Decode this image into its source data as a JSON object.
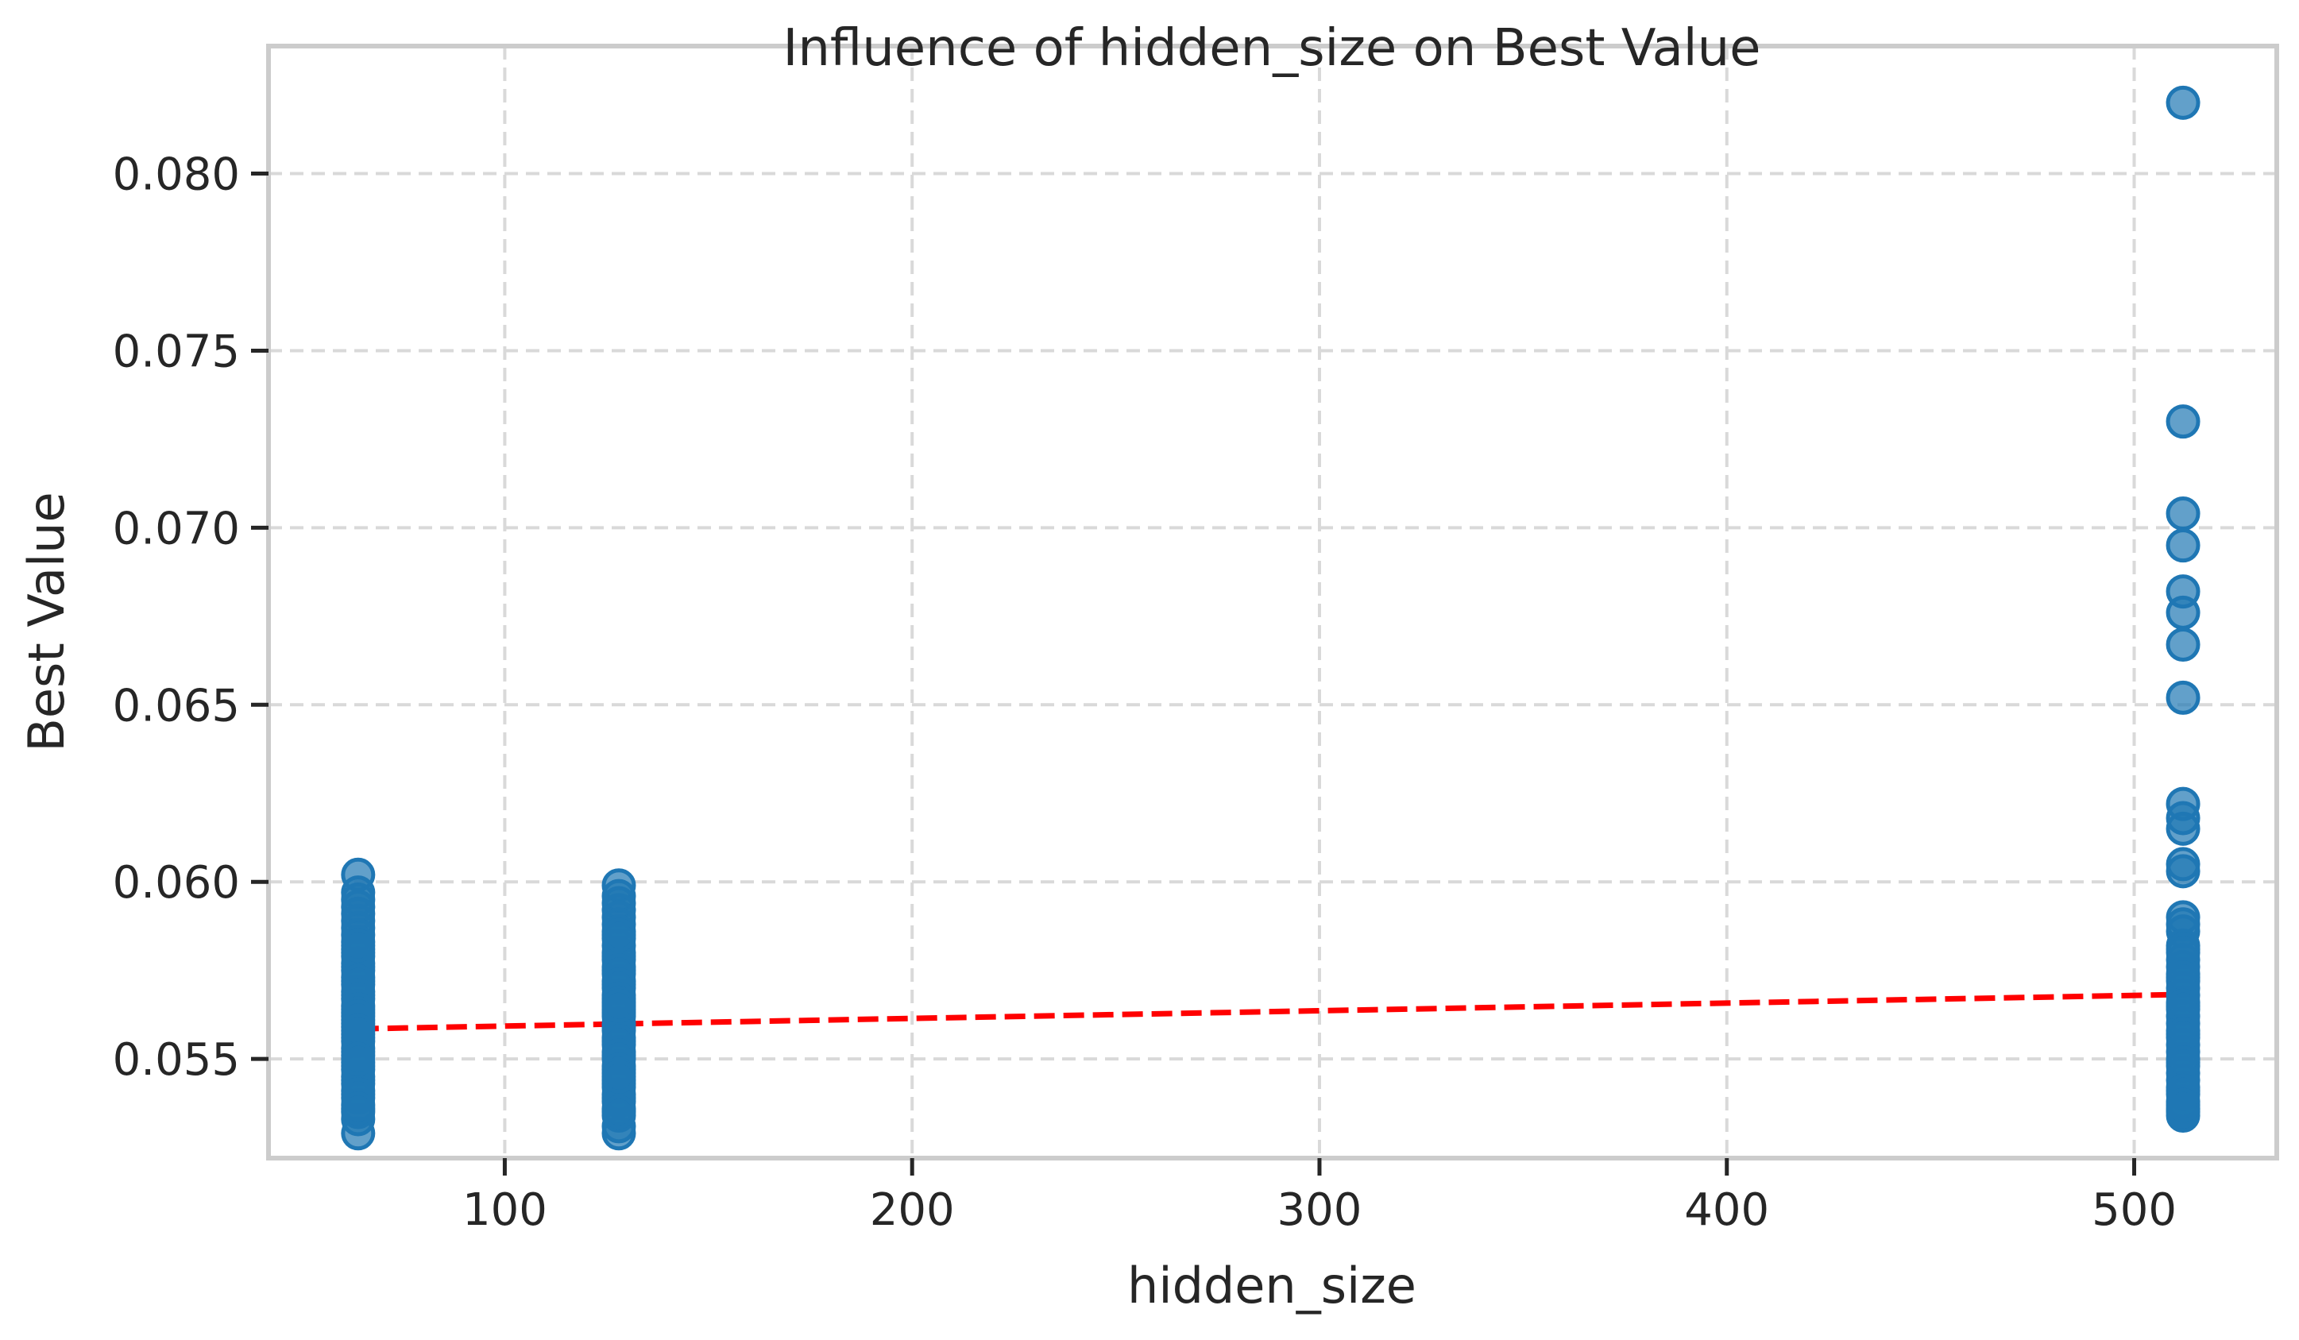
{
  "chart_data": {
    "type": "scatter",
    "title": "Influence of hidden_size on Best Value",
    "xlabel": "hidden_size",
    "ylabel": "Best Value",
    "xlim": [
      42,
      535
    ],
    "ylim": [
      0.0522,
      0.0836
    ],
    "xticks": [
      100,
      200,
      300,
      400,
      500
    ],
    "yticks": [
      0.055,
      0.06,
      0.065,
      0.07,
      0.075,
      0.08
    ],
    "xtick_labels": [
      "100",
      "200",
      "300",
      "400",
      "500"
    ],
    "ytick_labels": [
      "0.055",
      "0.060",
      "0.065",
      "0.070",
      "0.075",
      "0.080"
    ],
    "grid": true,
    "colors": {
      "points": "#1f77b4",
      "trend": "#ff0000",
      "frame": "#cccccc",
      "grid": "#d9d9d9"
    },
    "series": [
      {
        "x": [
          64,
          64,
          64,
          64,
          64,
          64,
          64,
          64,
          64,
          64,
          64,
          64,
          64,
          64,
          64,
          64,
          64,
          64,
          64,
          64,
          64,
          64,
          64,
          64,
          64,
          64,
          64,
          64,
          64,
          64,
          64,
          64,
          64,
          64,
          64,
          64,
          64,
          64,
          64,
          64,
          64,
          64,
          64,
          64,
          64,
          64,
          64,
          64,
          64,
          64,
          64
        ],
        "y": [
          0.0602,
          0.0597,
          0.0595,
          0.0593,
          0.0591,
          0.0589,
          0.0587,
          0.0585,
          0.0583,
          0.0581,
          0.0579,
          0.0577,
          0.0575,
          0.0573,
          0.0571,
          0.0569,
          0.0567,
          0.0565,
          0.0563,
          0.0561,
          0.0559,
          0.0557,
          0.0555,
          0.0553,
          0.0551,
          0.0549,
          0.0547,
          0.0545,
          0.0543,
          0.0541,
          0.0539,
          0.0537,
          0.0535,
          0.0533,
          0.0529,
          0.058,
          0.0576,
          0.0572,
          0.0568,
          0.0564,
          0.056,
          0.0556,
          0.0552,
          0.0548,
          0.0544,
          0.054,
          0.0536,
          0.0582,
          0.0562,
          0.0558,
          0.055
        ]
      },
      {
        "x": [
          128,
          128,
          128,
          128,
          128,
          128,
          128,
          128,
          128,
          128,
          128,
          128,
          128,
          128,
          128,
          128,
          128,
          128,
          128,
          128,
          128,
          128,
          128,
          128,
          128,
          128,
          128,
          128,
          128,
          128,
          128,
          128,
          128,
          128,
          128,
          128,
          128,
          128,
          128,
          128,
          128,
          128,
          128,
          128,
          128,
          128,
          128,
          128,
          128,
          128
        ],
        "y": [
          0.0599,
          0.0596,
          0.0594,
          0.0592,
          0.059,
          0.0588,
          0.0586,
          0.0584,
          0.0582,
          0.058,
          0.0578,
          0.0576,
          0.0574,
          0.0572,
          0.057,
          0.0568,
          0.0566,
          0.0564,
          0.0562,
          0.056,
          0.0558,
          0.0556,
          0.0554,
          0.0552,
          0.055,
          0.0548,
          0.0546,
          0.0544,
          0.0542,
          0.054,
          0.0538,
          0.0536,
          0.0534,
          0.0531,
          0.0529,
          0.0579,
          0.0575,
          0.0571,
          0.0567,
          0.0563,
          0.0559,
          0.0555,
          0.0551,
          0.0547,
          0.0543,
          0.0539,
          0.0535,
          0.0585,
          0.0565,
          0.0545
        ]
      },
      {
        "x": [
          512,
          512,
          512,
          512,
          512,
          512,
          512,
          512,
          512,
          512,
          512,
          512,
          512,
          512,
          512,
          512,
          512,
          512,
          512,
          512,
          512,
          512,
          512,
          512,
          512,
          512,
          512,
          512,
          512,
          512,
          512,
          512,
          512,
          512,
          512,
          512,
          512,
          512,
          512,
          512,
          512,
          512,
          512,
          512,
          512,
          512,
          512,
          512,
          512
        ],
        "y": [
          0.082,
          0.073,
          0.0704,
          0.0695,
          0.0682,
          0.0676,
          0.0667,
          0.0652,
          0.0622,
          0.0618,
          0.0615,
          0.0605,
          0.0603,
          0.059,
          0.0588,
          0.0586,
          0.0582,
          0.058,
          0.0578,
          0.0576,
          0.0574,
          0.0572,
          0.057,
          0.0568,
          0.0566,
          0.0564,
          0.0562,
          0.056,
          0.0558,
          0.0556,
          0.0554,
          0.0552,
          0.055,
          0.0548,
          0.0546,
          0.0544,
          0.0542,
          0.054,
          0.0538,
          0.0536,
          0.0535,
          0.0534,
          0.0581,
          0.0573,
          0.0565,
          0.0557,
          0.0549,
          0.0541,
          0.0537
        ]
      }
    ],
    "trend_line": {
      "x": [
        64,
        512
      ],
      "y": [
        0.05585,
        0.05682
      ]
    }
  }
}
